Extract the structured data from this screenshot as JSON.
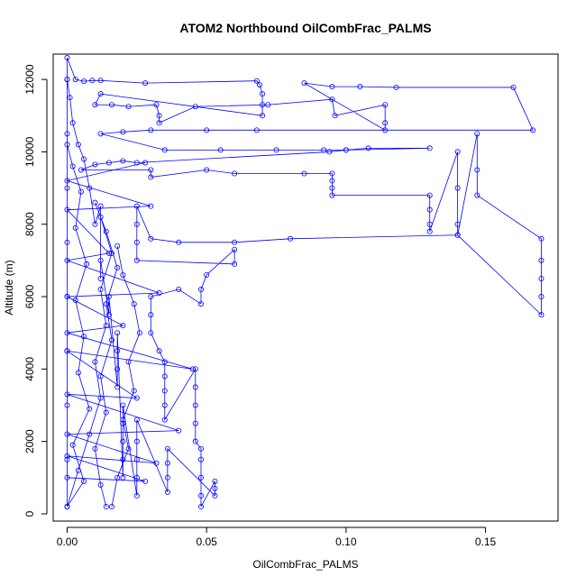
{
  "chart_data": {
    "type": "line",
    "title": "ATOM2 Northbound OilCombFrac_PALMS",
    "xlabel": "OilCombFrac_PALMS",
    "ylabel": "Altitude (m)",
    "xlim": [
      -0.005,
      0.176
    ],
    "ylim": [
      -200,
      12700
    ],
    "x_ticks": [
      0,
      0.05,
      0.1,
      0.15
    ],
    "x_tick_labels": [
      "0.00",
      "0.05",
      "0.10",
      "0.15"
    ],
    "y_ticks": [
      0,
      2000,
      4000,
      6000,
      8000,
      10000,
      12000
    ],
    "y_tick_labels": [
      "0",
      "2000",
      "4000",
      "6000",
      "8000",
      "10000",
      "12000"
    ],
    "grid": false,
    "legend": "none",
    "color": "#0000ff",
    "marker": "open-circle",
    "series": [
      {
        "points": [
          [
            0.0,
            200
          ],
          [
            0.0,
            1500
          ],
          [
            0.0,
            3000
          ],
          [
            0.0,
            4500
          ],
          [
            0.0,
            6000
          ],
          [
            0.0,
            7500
          ],
          [
            0.0,
            9000
          ],
          [
            0.0,
            10500
          ],
          [
            0.0,
            12000
          ],
          [
            0.0,
            12600
          ],
          [
            0.003,
            12000
          ],
          [
            0.006,
            11950
          ],
          [
            0.009,
            11970
          ],
          [
            0.012,
            11970
          ],
          [
            0.028,
            11900
          ],
          [
            0.068,
            11960
          ],
          [
            0.069,
            11850
          ],
          [
            0.07,
            11600
          ],
          [
            0.07,
            11300
          ],
          [
            0.07,
            11000
          ],
          [
            0.012,
            11600
          ],
          [
            0.01,
            11300
          ],
          [
            0.016,
            11300
          ],
          [
            0.022,
            11250
          ],
          [
            0.032,
            11300
          ],
          [
            0.033,
            11000
          ],
          [
            0.033,
            10800
          ],
          [
            0.046,
            11250
          ],
          [
            0.072,
            11300
          ],
          [
            0.095,
            11450
          ],
          [
            0.096,
            11000
          ],
          [
            0.114,
            11300
          ],
          [
            0.114,
            10800
          ],
          [
            0.114,
            10600
          ],
          [
            0.085,
            11900
          ],
          [
            0.095,
            11800
          ],
          [
            0.105,
            11800
          ],
          [
            0.118,
            11780
          ],
          [
            0.16,
            11780
          ],
          [
            0.167,
            10600
          ],
          [
            0.068,
            10600
          ],
          [
            0.05,
            10600
          ],
          [
            0.03,
            10600
          ],
          [
            0.02,
            10550
          ],
          [
            0.012,
            10500
          ],
          [
            0.035,
            10050
          ],
          [
            0.055,
            10050
          ],
          [
            0.075,
            10050
          ],
          [
            0.092,
            10050
          ],
          [
            0.1,
            10050
          ],
          [
            0.108,
            10100
          ],
          [
            0.13,
            10100
          ],
          [
            0.1,
            10050
          ],
          [
            0.094,
            10000
          ],
          [
            0.025,
            9700
          ],
          [
            0.02,
            9750
          ],
          [
            0.015,
            9700
          ],
          [
            0.01,
            9650
          ],
          [
            0.005,
            9500
          ],
          [
            0.03,
            9500
          ],
          [
            0.03,
            9300
          ],
          [
            0.05,
            9500
          ],
          [
            0.06,
            9400
          ],
          [
            0.085,
            9400
          ],
          [
            0.095,
            9400
          ],
          [
            0.095,
            9200
          ],
          [
            0.095,
            9000
          ],
          [
            0.095,
            8800
          ],
          [
            0.13,
            8800
          ],
          [
            0.13,
            8400
          ],
          [
            0.13,
            8000
          ],
          [
            0.13,
            7800
          ],
          [
            0.14,
            10000
          ],
          [
            0.14,
            9000
          ],
          [
            0.14,
            8000
          ],
          [
            0.14,
            7700
          ],
          [
            0.147,
            10500
          ],
          [
            0.147,
            9500
          ],
          [
            0.147,
            8800
          ],
          [
            0.17,
            7600
          ],
          [
            0.17,
            7000
          ],
          [
            0.17,
            6500
          ],
          [
            0.17,
            6000
          ],
          [
            0.17,
            5500
          ],
          [
            0.14,
            7700
          ],
          [
            0.08,
            7600
          ],
          [
            0.06,
            7500
          ],
          [
            0.04,
            7500
          ],
          [
            0.03,
            7600
          ],
          [
            0.025,
            8500
          ],
          [
            0.025,
            8000
          ],
          [
            0.025,
            7500
          ],
          [
            0.025,
            7000
          ],
          [
            0.06,
            6900
          ],
          [
            0.06,
            7300
          ],
          [
            0.05,
            6600
          ],
          [
            0.048,
            6200
          ],
          [
            0.048,
            5800
          ],
          [
            0.04,
            6200
          ],
          [
            0.03,
            6000
          ],
          [
            0.03,
            5500
          ],
          [
            0.03,
            5000
          ],
          [
            0.033,
            4500
          ],
          [
            0.035,
            4200
          ],
          [
            0.035,
            3800
          ],
          [
            0.035,
            3400
          ],
          [
            0.035,
            3000
          ],
          [
            0.035,
            2600
          ],
          [
            0.046,
            4000
          ],
          [
            0.046,
            3500
          ],
          [
            0.046,
            3000
          ],
          [
            0.046,
            2500
          ],
          [
            0.046,
            2000
          ],
          [
            0.048,
            1800
          ],
          [
            0.048,
            1500
          ],
          [
            0.048,
            1000
          ],
          [
            0.048,
            500
          ],
          [
            0.048,
            200
          ],
          [
            0.053,
            900
          ],
          [
            0.053,
            700
          ],
          [
            0.053,
            500
          ],
          [
            0.036,
            1800
          ],
          [
            0.036,
            1400
          ],
          [
            0.036,
            1000
          ],
          [
            0.036,
            600
          ],
          [
            0.025,
            2600
          ],
          [
            0.025,
            2000
          ],
          [
            0.025,
            1500
          ],
          [
            0.025,
            1000
          ],
          [
            0.025,
            500
          ],
          [
            0.02,
            3000
          ],
          [
            0.02,
            2500
          ],
          [
            0.02,
            2000
          ],
          [
            0.02,
            1500
          ],
          [
            0.02,
            1000
          ],
          [
            0.018,
            5000
          ],
          [
            0.018,
            4500
          ],
          [
            0.018,
            4000
          ],
          [
            0.018,
            3500
          ],
          [
            0.015,
            6000
          ],
          [
            0.015,
            5500
          ],
          [
            0.012,
            7000
          ],
          [
            0.012,
            6500
          ],
          [
            0.012,
            8500
          ],
          [
            0.01,
            8000
          ],
          [
            0.008,
            9000
          ],
          [
            0.006,
            9800
          ],
          [
            0.004,
            10200
          ],
          [
            0.002,
            10800
          ],
          [
            0.001,
            11500
          ],
          [
            0.0,
            12000
          ],
          [
            0.0,
            200
          ]
        ]
      },
      {
        "points": [
          [
            0.0,
            200
          ],
          [
            0.004,
            1200
          ],
          [
            0.008,
            2200
          ],
          [
            0.012,
            3200
          ],
          [
            0.01,
            4200
          ],
          [
            0.014,
            5200
          ],
          [
            0.012,
            6200
          ],
          [
            0.016,
            7200
          ],
          [
            0.012,
            8200
          ],
          [
            0.01,
            8600
          ],
          [
            0.014,
            7800
          ],
          [
            0.018,
            6800
          ],
          [
            0.014,
            5800
          ],
          [
            0.016,
            4800
          ],
          [
            0.012,
            3800
          ],
          [
            0.014,
            2800
          ],
          [
            0.01,
            1800
          ],
          [
            0.012,
            800
          ],
          [
            0.014,
            200
          ]
        ]
      },
      {
        "points": [
          [
            0.0,
            200
          ],
          [
            0.006,
            900
          ],
          [
            0.002,
            1900
          ],
          [
            0.008,
            2900
          ],
          [
            0.004,
            3900
          ],
          [
            0.006,
            4900
          ],
          [
            0.003,
            5900
          ],
          [
            0.007,
            6900
          ],
          [
            0.003,
            7900
          ],
          [
            0.005,
            8900
          ],
          [
            0.002,
            9600
          ],
          [
            0.0,
            10200
          ]
        ]
      },
      {
        "points": [
          [
            0.016,
            200
          ],
          [
            0.018,
            1000
          ],
          [
            0.022,
            1800
          ],
          [
            0.02,
            2600
          ],
          [
            0.024,
            3400
          ],
          [
            0.022,
            4200
          ],
          [
            0.026,
            5000
          ],
          [
            0.024,
            5800
          ],
          [
            0.02,
            6600
          ],
          [
            0.018,
            7400
          ]
        ]
      },
      {
        "points": [
          [
            0.0,
            1000
          ],
          [
            0.028,
            900
          ],
          [
            0.0,
            1600
          ],
          [
            0.032,
            1400
          ],
          [
            0.0,
            2200
          ],
          [
            0.04,
            2300
          ],
          [
            0.0,
            3300
          ],
          [
            0.025,
            3200
          ],
          [
            0.0,
            4500
          ],
          [
            0.045,
            4000
          ],
          [
            0.0,
            5000
          ],
          [
            0.02,
            5200
          ],
          [
            0.0,
            6000
          ],
          [
            0.033,
            6100
          ],
          [
            0.0,
            7000
          ],
          [
            0.015,
            7200
          ],
          [
            0.0,
            8400
          ],
          [
            0.03,
            8500
          ],
          [
            0.0,
            9200
          ],
          [
            0.028,
            9700
          ]
        ]
      }
    ]
  }
}
